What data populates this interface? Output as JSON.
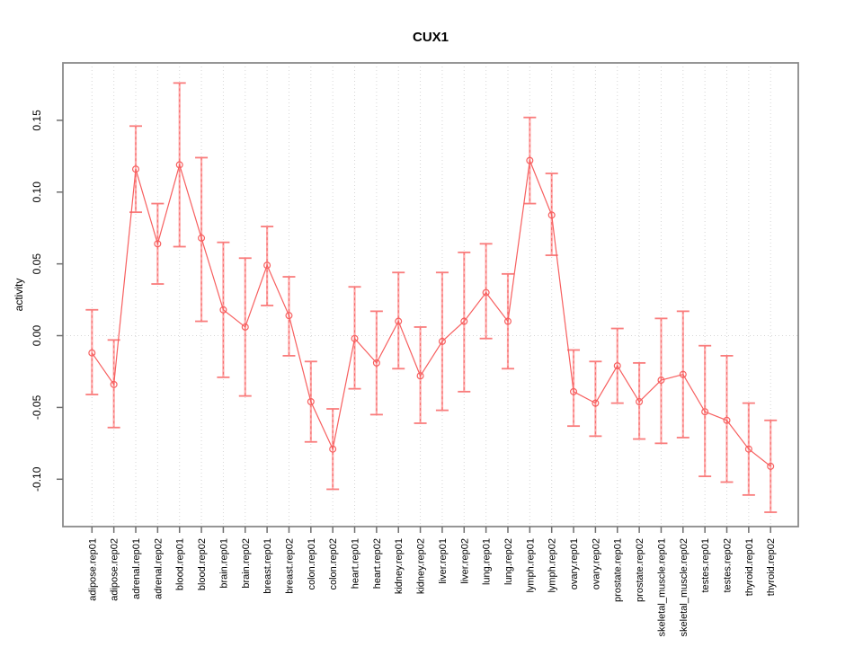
{
  "page": {
    "background": "#ffffff"
  },
  "chart_data": {
    "type": "line",
    "title": "CUX1",
    "xlabel": "",
    "ylabel": "activity",
    "legend": "none",
    "ylim": [
      -0.133,
      0.19
    ],
    "yticks": [
      -0.1,
      -0.05,
      0.0,
      0.05,
      0.1,
      0.15
    ],
    "ytick_labels": [
      "-0.10",
      "-0.05",
      "0.00",
      "0.05",
      "0.10",
      "0.15"
    ],
    "grid": {
      "vertical_dotted_per_category": true,
      "horizontal_dotted_at_zero": true
    },
    "marker": "open-circle",
    "error_bars": true,
    "categories": [
      "adipose.rep01",
      "adipose.rep02",
      "adrenal.rep01",
      "adrenal.rep02",
      "blood.rep01",
      "blood.rep02",
      "brain.rep01",
      "brain.rep02",
      "breast.rep01",
      "breast.rep02",
      "colon.rep01",
      "colon.rep02",
      "heart.rep01",
      "heart.rep02",
      "kidney.rep01",
      "kidney.rep02",
      "liver.rep01",
      "liver.rep02",
      "lung.rep01",
      "lung.rep02",
      "lymph.rep01",
      "lymph.rep02",
      "ovary.rep01",
      "ovary.rep02",
      "prostate.rep01",
      "prostate.rep02",
      "skeletal_muscle.rep01",
      "skeletal_muscle.rep02",
      "testes.rep01",
      "testes.rep02",
      "thyroid.rep01",
      "thyroid.rep02"
    ],
    "series": [
      {
        "name": "activity",
        "values": [
          -0.012,
          -0.034,
          0.116,
          0.064,
          0.119,
          0.068,
          0.018,
          0.006,
          0.049,
          0.014,
          -0.046,
          -0.079,
          -0.002,
          -0.019,
          0.01,
          -0.028,
          -0.004,
          0.01,
          0.03,
          0.01,
          0.122,
          0.084,
          -0.039,
          -0.047,
          -0.021,
          -0.046,
          -0.031,
          -0.027,
          -0.053,
          -0.059,
          -0.079,
          -0.091
        ],
        "lower": [
          -0.041,
          -0.064,
          0.086,
          0.036,
          0.062,
          0.01,
          -0.029,
          -0.042,
          0.021,
          -0.014,
          -0.074,
          -0.107,
          -0.037,
          -0.055,
          -0.023,
          -0.061,
          -0.052,
          -0.039,
          -0.002,
          -0.023,
          0.092,
          0.056,
          -0.063,
          -0.07,
          -0.047,
          -0.072,
          -0.075,
          -0.071,
          -0.098,
          -0.102,
          -0.111,
          -0.123
        ],
        "upper": [
          0.018,
          -0.003,
          0.146,
          0.092,
          0.176,
          0.124,
          0.065,
          0.054,
          0.076,
          0.041,
          -0.018,
          -0.051,
          0.034,
          0.017,
          0.044,
          0.006,
          0.044,
          0.058,
          0.064,
          0.043,
          0.152,
          0.113,
          -0.01,
          -0.018,
          0.005,
          -0.019,
          0.012,
          0.017,
          -0.007,
          -0.014,
          -0.047,
          -0.059
        ]
      }
    ],
    "colors": {
      "line": "#f75f5f",
      "marker": "#f75f5f",
      "error_stem": "#fdaaaa",
      "error_stem_dash": "#f76a6a",
      "error_cap": "#f97c7c",
      "gridline": "#d6d6d6",
      "frame": "#8a8a8a",
      "tick": "#6f6f6f",
      "text": "#000000"
    }
  }
}
